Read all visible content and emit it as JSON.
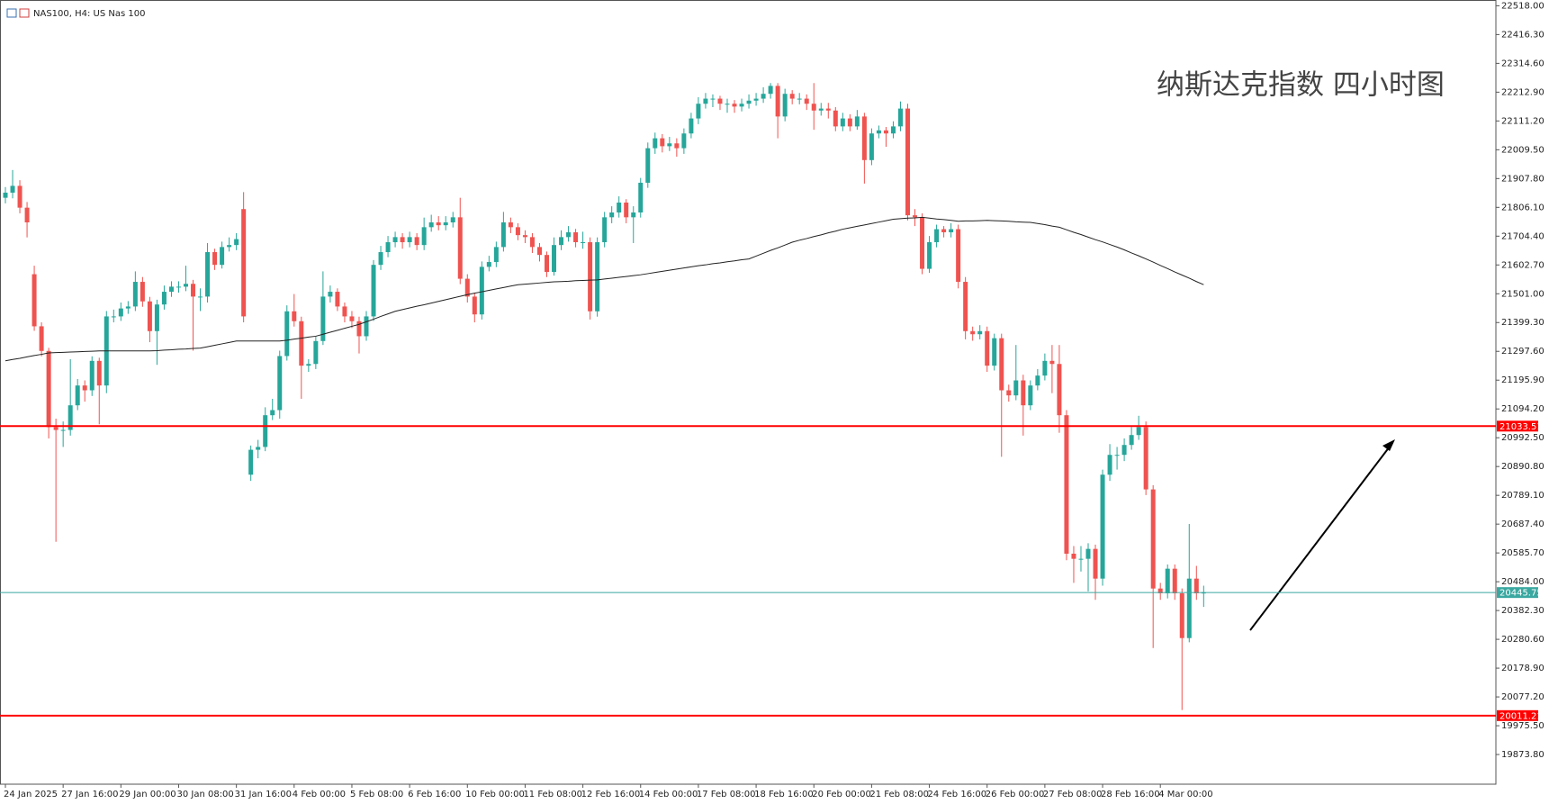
{
  "chart_data": {
    "type": "candlestick",
    "title": "NAS100, H4:  US Nas 100",
    "annotation": "纳斯达克指数 四小时图",
    "bull_color": "#26a69a",
    "bear_color": "#ef5350",
    "categories": [
      "24 Jan 2025",
      null,
      null,
      null,
      null,
      null,
      null,
      null,
      "27 Jan 16:00",
      null,
      null,
      null,
      null,
      null,
      null,
      null,
      "29 Jan 00:00",
      null,
      null,
      null,
      null,
      null,
      null,
      null,
      "30 Jan 08:00",
      null,
      null,
      null,
      null,
      null,
      null,
      null,
      "31 Jan 16:00",
      null,
      null,
      null,
      null,
      null,
      null,
      null,
      "4 Feb 00:00",
      null,
      null,
      null,
      null,
      null,
      null,
      null,
      "5 Feb 08:00",
      null,
      null,
      null,
      null,
      null,
      null,
      null,
      "6 Feb 16:00",
      null,
      null,
      null,
      null,
      null,
      null,
      null,
      "10 Feb 00:00",
      null,
      null,
      null,
      null,
      null,
      null,
      null,
      "11 Feb 08:00",
      null,
      null,
      null,
      null,
      null,
      null,
      null,
      "12 Feb 16:00",
      null,
      null,
      null,
      null,
      null,
      null,
      null,
      "14 Feb 00:00",
      null,
      null,
      null,
      null,
      null,
      null,
      null,
      "17 Feb 08:00",
      null,
      null,
      null,
      null,
      null,
      null,
      null,
      "18 Feb 16:00",
      null,
      null,
      null,
      null,
      null,
      null,
      null,
      "20 Feb 00:00",
      null,
      null,
      null,
      null,
      null,
      null,
      null,
      "21 Feb 08:00",
      null,
      null,
      null,
      null,
      null,
      null,
      null,
      "24 Feb 16:00",
      null,
      null,
      null,
      null,
      null,
      null,
      null,
      "26 Feb 00:00",
      null,
      null,
      null,
      null,
      null,
      null,
      null,
      "27 Feb 08:00",
      null,
      null,
      null,
      null,
      null,
      null,
      null,
      "28 Feb 16:00",
      null,
      null,
      null,
      null,
      null,
      null,
      null,
      "4 Mar 00:00",
      null,
      null,
      null,
      null,
      null,
      null
    ],
    "open": [
      21840,
      21858,
      21882,
      21805,
      21570,
      21386,
      21299,
      21030,
      21020,
      21020,
      21107,
      21177,
      21160,
      21264,
      21177,
      21421,
      21421,
      21449,
      21456,
      21543,
      21474,
      21369,
      21463,
      21508,
      21526,
      21526,
      21536,
      21491,
      21491,
      21648,
      21603,
      21666,
      21673,
      21800,
      20862,
      20950,
      20960,
      21072,
      21090,
      21281,
      21439,
      21404,
      21247,
      21253,
      21334,
      21491,
      21508,
      21456,
      21421,
      21404,
      21351,
      21421,
      21603,
      21648,
      21683,
      21701,
      21683,
      21701,
      21673,
      21736,
      21753,
      21743,
      21753,
      21771,
      21554,
      21491,
      21428,
      21596,
      21613,
      21666,
      21753,
      21736,
      21708,
      21701,
      21666,
      21638,
      21578,
      21673,
      21701,
      21718,
      21683,
      21683,
      21439,
      21683,
      21771,
      21788,
      21823,
      21771,
      21788,
      21893,
      22015,
      22050,
      22022,
      22032,
      22015,
      22067,
      22120,
      22172,
      22190,
      22190,
      22172,
      22172,
      22162,
      22172,
      22183,
      22190,
      22207,
      22235,
      22127,
      22207,
      22190,
      22190,
      22172,
      22148,
      22155,
      22148,
      22092,
      22120,
      22092,
      22127,
      21973,
      22067,
      22078,
      22067,
      22092,
      22155,
      21778,
      21771,
      21589,
      21683,
      21729,
      21718,
      21729,
      21543,
      21369,
      21358,
      21369,
      21247,
      21344,
      21160,
      21142,
      21195,
      21107,
      21177,
      21212,
      21264,
      21253,
      21072,
      20583,
      20565,
      20565,
      20600,
      20495,
      20862,
      20932,
      20932,
      20967,
      21002,
      21030,
      20810,
      20460,
      20443,
      20530,
      20443,
      20285,
      20495,
      20443
    ],
    "high": [
      21878,
      21938,
      21902,
      21825,
      21600,
      21400,
      21310,
      21060,
      21050,
      21270,
      21200,
      21195,
      21280,
      21275,
      21440,
      21445,
      21470,
      21475,
      21580,
      21560,
      21490,
      21480,
      21530,
      21545,
      21545,
      21600,
      21550,
      21520,
      21680,
      21660,
      21685,
      21700,
      21715,
      21860,
      20965,
      20985,
      21100,
      21130,
      21300,
      21460,
      21500,
      21420,
      21270,
      21350,
      21580,
      21530,
      21520,
      21470,
      21440,
      21420,
      21440,
      21620,
      21670,
      21705,
      21720,
      21715,
      21720,
      21715,
      21770,
      21780,
      21775,
      21775,
      21790,
      21840,
      21570,
      21505,
      21615,
      21635,
      21685,
      21790,
      21770,
      21750,
      21725,
      21715,
      21680,
      21650,
      21700,
      21725,
      21740,
      21730,
      21720,
      21700,
      21700,
      21790,
      21810,
      21845,
      21835,
      21810,
      21910,
      22035,
      22070,
      22065,
      22055,
      22050,
      22085,
      22140,
      22195,
      22210,
      22205,
      22200,
      22190,
      22185,
      22190,
      22205,
      22210,
      22230,
      22245,
      22245,
      22225,
      22220,
      22210,
      22205,
      22245,
      22175,
      22175,
      22160,
      22140,
      22135,
      22150,
      22140,
      22085,
      22095,
      22090,
      22110,
      22180,
      22172,
      21800,
      21785,
      21705,
      21745,
      21740,
      21750,
      21745,
      21560,
      21385,
      21390,
      21385,
      21360,
      21360,
      21180,
      21320,
      21215,
      21195,
      21235,
      21290,
      21320,
      21320,
      21090,
      20610,
      20610,
      20620,
      20615,
      20880,
      20970,
      20960,
      20990,
      21030,
      21070,
      21050,
      20825,
      20480,
      20545,
      20545,
      20460,
      20688,
      20540,
      20470
    ],
    "low": [
      21820,
      21838,
      21785,
      21700,
      21370,
      21280,
      20990,
      20625,
      20960,
      21000,
      21090,
      21120,
      21140,
      21040,
      21150,
      21400,
      21405,
      21430,
      21440,
      21455,
      21330,
      21250,
      21445,
      21490,
      21505,
      21510,
      21300,
      21440,
      21470,
      21585,
      21590,
      21650,
      21655,
      21400,
      20840,
      20920,
      20945,
      21055,
      21060,
      21265,
      21385,
      21130,
      21225,
      21235,
      21320,
      21470,
      21440,
      21400,
      21380,
      21290,
      21335,
      21405,
      21585,
      21630,
      21665,
      21660,
      21665,
      21655,
      21655,
      21720,
      21725,
      21725,
      21735,
      21535,
      21470,
      21400,
      21410,
      21580,
      21595,
      21650,
      21715,
      21690,
      21680,
      21645,
      21615,
      21560,
      21565,
      21655,
      21685,
      21665,
      21660,
      21410,
      21420,
      21665,
      21750,
      21770,
      21750,
      21680,
      21770,
      21875,
      21995,
      22000,
      22005,
      21985,
      21995,
      22050,
      22100,
      22155,
      22160,
      22150,
      22140,
      22140,
      22145,
      22155,
      22165,
      22175,
      22190,
      22050,
      22110,
      22170,
      22170,
      22150,
      22080,
      22130,
      22120,
      22075,
      22075,
      22075,
      22080,
      21890,
      21955,
      22050,
      22020,
      22050,
      22075,
      21760,
      21740,
      21570,
      21575,
      21665,
      21700,
      21700,
      21520,
      21340,
      21335,
      21340,
      21225,
      21230,
      20925,
      21120,
      21125,
      21000,
      21090,
      21160,
      21195,
      21150,
      21010,
      20560,
      20480,
      20520,
      20450,
      20420,
      20470,
      20840,
      20880,
      20910,
      20950,
      20985,
      20790,
      20250,
      20420,
      20425,
      20420,
      20031,
      20270,
      20420,
      20395
    ],
    "close": [
      21858,
      21882,
      21805,
      21753,
      21386,
      21299,
      21030,
      21020,
      21020,
      21107,
      21177,
      21160,
      21264,
      21177,
      21421,
      21421,
      21449,
      21456,
      21543,
      21474,
      21369,
      21463,
      21508,
      21526,
      21526,
      21536,
      21491,
      21491,
      21648,
      21603,
      21666,
      21673,
      21694,
      21421,
      20950,
      20960,
      21072,
      21090,
      21281,
      21439,
      21404,
      21247,
      21253,
      21334,
      21491,
      21508,
      21456,
      21421,
      21404,
      21351,
      21421,
      21603,
      21648,
      21683,
      21701,
      21683,
      21701,
      21673,
      21736,
      21753,
      21743,
      21753,
      21771,
      21554,
      21491,
      21428,
      21596,
      21613,
      21666,
      21753,
      21736,
      21708,
      21701,
      21666,
      21638,
      21578,
      21673,
      21701,
      21718,
      21683,
      21683,
      21439,
      21683,
      21771,
      21788,
      21823,
      21771,
      21788,
      21893,
      22015,
      22050,
      22022,
      22032,
      22015,
      22067,
      22120,
      22172,
      22190,
      22190,
      22172,
      22172,
      22162,
      22172,
      22183,
      22190,
      22207,
      22235,
      22127,
      22207,
      22190,
      22190,
      22172,
      22148,
      22155,
      22148,
      22092,
      22120,
      22092,
      22127,
      21973,
      22067,
      22078,
      22067,
      22092,
      22155,
      21778,
      21771,
      21589,
      21683,
      21729,
      21718,
      21729,
      21543,
      21369,
      21358,
      21369,
      21247,
      21344,
      21160,
      21142,
      21195,
      21107,
      21177,
      21212,
      21264,
      21253,
      21072,
      20583,
      20565,
      20565,
      20600,
      20495,
      20862,
      20932,
      20932,
      20967,
      21002,
      21030,
      20810,
      20460,
      20443,
      20530,
      20443,
      20285,
      20495,
      20443,
      20445.75
    ],
    "ma": {
      "color": "#222222",
      "values": [
        21264,
        21269,
        21273,
        21278,
        21283,
        21287,
        21292,
        21293,
        21294,
        21295,
        21296,
        21297,
        21298,
        21299,
        21299,
        21299,
        21299,
        21299,
        21299,
        21299,
        21299,
        21300,
        21302,
        21303,
        21305,
        21306,
        21308,
        21309,
        21314,
        21319,
        21324,
        21329,
        21334,
        21334,
        21334,
        21334,
        21334,
        21334,
        21334,
        21337,
        21341,
        21344,
        21348,
        21351,
        21358,
        21365,
        21372,
        21379,
        21386,
        21393,
        21402,
        21411,
        21421,
        21430,
        21439,
        21445,
        21451,
        21457,
        21462,
        21468,
        21474,
        21480,
        21486,
        21492,
        21498,
        21503,
        21508,
        21513,
        21518,
        21523,
        21528,
        21533,
        21535,
        21537,
        21539,
        21541,
        21543,
        21544,
        21545,
        21547,
        21548,
        21549,
        21550,
        21553,
        21556,
        21559,
        21562,
        21565,
        21568,
        21572,
        21576,
        21580,
        21584,
        21588,
        21592,
        21596,
        21600,
        21603,
        21607,
        21610,
        21614,
        21617,
        21621,
        21624,
        21634,
        21644,
        21654,
        21663,
        21673,
        21683,
        21690,
        21696,
        21703,
        21709,
        21716,
        21722,
        21729,
        21734,
        21739,
        21744,
        21749,
        21754,
        21759,
        21764,
        21766,
        21768,
        21769,
        21771,
        21768,
        21765,
        21763,
        21760,
        21757,
        21758,
        21758,
        21759,
        21760,
        21759,
        21758,
        21757,
        21755,
        21754,
        21753,
        21749,
        21745,
        21740,
        21736,
        21727,
        21718,
        21710,
        21701,
        21692,
        21684,
        21675,
        21666,
        21656,
        21645,
        21635,
        21624,
        21613,
        21601,
        21590,
        21578,
        21567,
        21556,
        21544,
        21533
      ]
    },
    "price_lines": [
      {
        "value": 21033.51,
        "color": "#ff0000"
      },
      {
        "value": 20445.75,
        "color": "#3aa8a0"
      },
      {
        "value": 20011.21,
        "color": "#ff0000"
      }
    ],
    "ylim": [
      19769,
      22532
    ],
    "yticks": [
      {
        "value": 22518,
        "label": "22518.00"
      },
      {
        "value": 22416.3,
        "label": "22416.30"
      },
      {
        "value": 22314.6,
        "label": "22314.60"
      },
      {
        "value": 22212.9,
        "label": "22212.90"
      },
      {
        "value": 22111.2,
        "label": "22111.20"
      },
      {
        "value": 22009.5,
        "label": "22009.50"
      },
      {
        "value": 21907.8,
        "label": "21907.80"
      },
      {
        "value": 21806.1,
        "label": "21806.10"
      },
      {
        "value": 21704.4,
        "label": "21704.40"
      },
      {
        "value": 21602.7,
        "label": "21602.70"
      },
      {
        "value": 21501,
        "label": "21501.00"
      },
      {
        "value": 21399.3,
        "label": "21399.30"
      },
      {
        "value": 21297.6,
        "label": "21297.60"
      },
      {
        "value": 21195.9,
        "label": "21195.90"
      },
      {
        "value": 21094.2,
        "label": "21094.20"
      },
      {
        "value": 20992.5,
        "label": "20992.50"
      },
      {
        "value": 20890.8,
        "label": "20890.80"
      },
      {
        "value": 20789.1,
        "label": "20789.10"
      },
      {
        "value": 20687.4,
        "label": "20687.40"
      },
      {
        "value": 20585.7,
        "label": "20585.70"
      },
      {
        "value": 20484,
        "label": "20484.00"
      },
      {
        "value": 20382.3,
        "label": "20382.30"
      },
      {
        "value": 20280.6,
        "label": "20280.60"
      },
      {
        "value": 20178.9,
        "label": "20178.90"
      },
      {
        "value": 20077.2,
        "label": "20077.20"
      },
      {
        "value": 19975.5,
        "label": "19975.50"
      },
      {
        "value": 19873.8,
        "label": "19873.80"
      }
    ]
  }
}
